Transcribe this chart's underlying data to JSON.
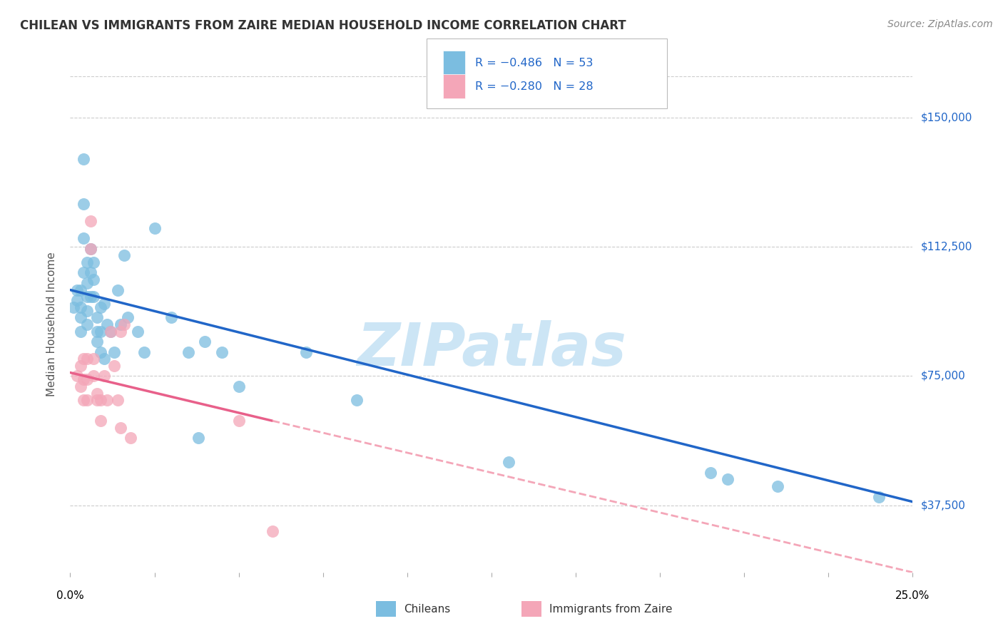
{
  "title": "CHILEAN VS IMMIGRANTS FROM ZAIRE MEDIAN HOUSEHOLD INCOME CORRELATION CHART",
  "source": "Source: ZipAtlas.com",
  "ylabel": "Median Household Income",
  "yticks": [
    37500,
    75000,
    112500,
    150000
  ],
  "ytick_labels": [
    "$37,500",
    "$75,000",
    "$112,500",
    "$150,000"
  ],
  "xlim": [
    0.0,
    0.25
  ],
  "ylim": [
    18000,
    162000
  ],
  "chilean_color": "#7bbde0",
  "zaire_color": "#f4a6b8",
  "line_chilean_color": "#2166c8",
  "line_zaire_color": "#e8608a",
  "line_zaire_dash_color": "#f4a6b8",
  "watermark": "ZIPatlas",
  "watermark_color": "#cce5f5",
  "chilean_x": [
    0.001,
    0.002,
    0.002,
    0.003,
    0.003,
    0.003,
    0.003,
    0.004,
    0.004,
    0.004,
    0.004,
    0.005,
    0.005,
    0.005,
    0.005,
    0.005,
    0.006,
    0.006,
    0.006,
    0.007,
    0.007,
    0.007,
    0.008,
    0.008,
    0.008,
    0.009,
    0.009,
    0.009,
    0.01,
    0.01,
    0.011,
    0.012,
    0.013,
    0.014,
    0.015,
    0.016,
    0.017,
    0.02,
    0.022,
    0.025,
    0.03,
    0.035,
    0.038,
    0.04,
    0.045,
    0.05,
    0.07,
    0.085,
    0.13,
    0.19,
    0.195,
    0.21,
    0.24
  ],
  "chilean_y": [
    95000,
    100000,
    97000,
    100000,
    95000,
    92000,
    88000,
    138000,
    125000,
    115000,
    105000,
    108000,
    102000,
    98000,
    94000,
    90000,
    112000,
    105000,
    98000,
    108000,
    103000,
    98000,
    92000,
    88000,
    85000,
    95000,
    88000,
    82000,
    96000,
    80000,
    90000,
    88000,
    82000,
    100000,
    90000,
    110000,
    92000,
    88000,
    82000,
    118000,
    92000,
    82000,
    57000,
    85000,
    82000,
    72000,
    82000,
    68000,
    50000,
    47000,
    45000,
    43000,
    40000
  ],
  "zaire_x": [
    0.002,
    0.003,
    0.003,
    0.004,
    0.004,
    0.004,
    0.005,
    0.005,
    0.005,
    0.006,
    0.006,
    0.007,
    0.007,
    0.008,
    0.008,
    0.009,
    0.009,
    0.01,
    0.011,
    0.012,
    0.013,
    0.014,
    0.015,
    0.015,
    0.016,
    0.018,
    0.05,
    0.06
  ],
  "zaire_y": [
    75000,
    78000,
    72000,
    80000,
    74000,
    68000,
    80000,
    74000,
    68000,
    120000,
    112000,
    80000,
    75000,
    70000,
    68000,
    68000,
    62000,
    75000,
    68000,
    88000,
    78000,
    68000,
    60000,
    88000,
    90000,
    57000,
    62000,
    30000
  ],
  "line_chilean_x0": 0.0,
  "line_chilean_y0": 100000,
  "line_chilean_x1": 0.25,
  "line_chilean_y1": 38500,
  "line_zaire_solid_x0": 0.0,
  "line_zaire_solid_y0": 76000,
  "line_zaire_solid_x1": 0.06,
  "line_zaire_solid_y1": 62000,
  "line_zaire_dash_x0": 0.06,
  "line_zaire_dash_y0": 62000,
  "line_zaire_dash_x1": 0.25,
  "line_zaire_dash_y1": 18000
}
